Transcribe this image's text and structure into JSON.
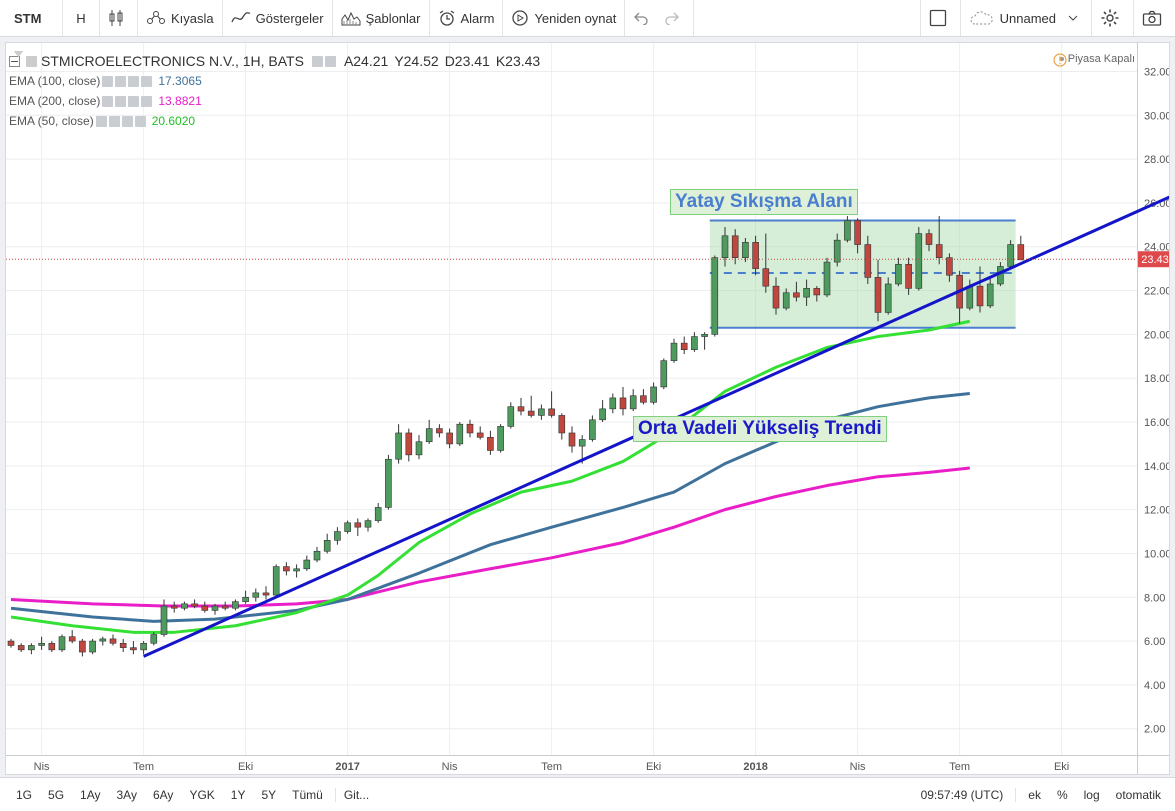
{
  "toolbar": {
    "symbol": "STM",
    "interval": "H",
    "compare": "Kıyasla",
    "indicators": "Göstergeler",
    "templates": "Şablonlar",
    "alert": "Alarm",
    "replay": "Yeniden oynat",
    "layout_name": "Unnamed"
  },
  "legend": {
    "title": "STMICROELECTRONICS N.V., 1H, BATS",
    "ohlc": [
      "A24.21",
      "Y24.52",
      "D23.41",
      "K23.43"
    ],
    "ema100": {
      "label": "EMA (100, close)",
      "value": "17.3065",
      "color": "#3f729b"
    },
    "ema200": {
      "label": "EMA (200, close)",
      "value": "13.8821",
      "color": "#e91ec8"
    },
    "ema50": {
      "label": "EMA (50, close)",
      "value": "20.6020",
      "color": "#35e035"
    }
  },
  "market_status": "Piyasa Kapalı",
  "annotations": {
    "range": "Yatay Sıkışma Alanı",
    "trend": "Orta Vadeli Yükseliş Trendi"
  },
  "chart_data": {
    "type": "candlestick",
    "ylim": [
      0.8,
      33.3
    ],
    "y_ticks": [
      "32.00",
      "30.00",
      "28.00",
      "26.00",
      "24.00",
      "22.00",
      "20.00",
      "18.00",
      "16.00",
      "14.00",
      "12.00",
      "10.00",
      "8.00",
      "6.00",
      "4.00",
      "2.00"
    ],
    "y_tick_values": [
      32,
      30,
      28,
      26,
      24,
      22,
      20,
      18,
      16,
      14,
      12,
      10,
      8,
      6,
      4,
      2
    ],
    "x_ticks": [
      {
        "label": "Nis",
        "i": 3
      },
      {
        "label": "Tem",
        "i": 13
      },
      {
        "label": "Eki",
        "i": 23
      },
      {
        "label": "2017",
        "i": 33
      },
      {
        "label": "Nis",
        "i": 43
      },
      {
        "label": "Tem",
        "i": 53
      },
      {
        "label": "Eki",
        "i": 63
      },
      {
        "label": "2018",
        "i": 73
      },
      {
        "label": "Nis",
        "i": 83
      },
      {
        "label": "Tem",
        "i": 93
      },
      {
        "label": "Eki",
        "i": 103
      }
    ],
    "x_max": 113,
    "last_price": 23.43,
    "last_price_label": "23.43",
    "up_color": "#4e9a5f",
    "down_color": "#c0473e",
    "candles": [
      [
        6.0,
        6.1,
        5.7,
        5.8
      ],
      [
        5.8,
        5.9,
        5.5,
        5.6
      ],
      [
        5.6,
        5.9,
        5.4,
        5.8
      ],
      [
        5.8,
        6.2,
        5.6,
        5.9
      ],
      [
        5.9,
        6.0,
        5.5,
        5.6
      ],
      [
        5.6,
        6.3,
        5.5,
        6.2
      ],
      [
        6.2,
        6.5,
        5.9,
        6.0
      ],
      [
        6.0,
        6.1,
        5.3,
        5.5
      ],
      [
        5.5,
        6.1,
        5.4,
        6.0
      ],
      [
        6.0,
        6.2,
        5.8,
        6.1
      ],
      [
        6.1,
        6.3,
        5.8,
        5.9
      ],
      [
        5.9,
        6.1,
        5.5,
        5.7
      ],
      [
        5.7,
        6.0,
        5.4,
        5.6
      ],
      [
        5.6,
        6.0,
        5.4,
        5.9
      ],
      [
        5.9,
        6.4,
        5.8,
        6.3
      ],
      [
        6.3,
        7.9,
        6.2,
        7.6
      ],
      [
        7.6,
        7.8,
        7.3,
        7.5
      ],
      [
        7.5,
        7.8,
        7.4,
        7.7
      ],
      [
        7.7,
        7.9,
        7.5,
        7.6
      ],
      [
        7.6,
        7.8,
        7.3,
        7.4
      ],
      [
        7.4,
        7.7,
        7.2,
        7.6
      ],
      [
        7.6,
        7.8,
        7.4,
        7.5
      ],
      [
        7.5,
        7.9,
        7.4,
        7.8
      ],
      [
        7.8,
        8.3,
        7.7,
        8.0
      ],
      [
        8.0,
        8.4,
        7.8,
        8.2
      ],
      [
        8.2,
        8.5,
        7.9,
        8.1
      ],
      [
        8.1,
        9.5,
        8.0,
        9.4
      ],
      [
        9.4,
        9.6,
        9.0,
        9.2
      ],
      [
        9.2,
        9.5,
        8.9,
        9.3
      ],
      [
        9.3,
        9.9,
        9.2,
        9.7
      ],
      [
        9.7,
        10.3,
        9.6,
        10.1
      ],
      [
        10.1,
        10.9,
        10.0,
        10.6
      ],
      [
        10.6,
        11.2,
        10.4,
        11.0
      ],
      [
        11.0,
        11.5,
        10.9,
        11.4
      ],
      [
        11.4,
        11.6,
        10.8,
        11.2
      ],
      [
        11.2,
        11.6,
        11.0,
        11.5
      ],
      [
        11.5,
        12.3,
        11.4,
        12.1
      ],
      [
        12.1,
        14.5,
        12.0,
        14.3
      ],
      [
        14.3,
        15.9,
        14.1,
        15.5
      ],
      [
        15.5,
        15.7,
        14.2,
        14.5
      ],
      [
        14.5,
        15.4,
        14.3,
        15.1
      ],
      [
        15.1,
        16.1,
        15.0,
        15.7
      ],
      [
        15.7,
        15.9,
        15.3,
        15.5
      ],
      [
        15.5,
        15.7,
        14.8,
        15.0
      ],
      [
        15.0,
        16.0,
        14.9,
        15.9
      ],
      [
        15.9,
        16.1,
        15.3,
        15.5
      ],
      [
        15.5,
        15.8,
        15.2,
        15.3
      ],
      [
        15.3,
        15.6,
        14.5,
        14.7
      ],
      [
        14.7,
        15.9,
        14.6,
        15.8
      ],
      [
        15.8,
        16.9,
        15.7,
        16.7
      ],
      [
        16.7,
        17.1,
        16.3,
        16.5
      ],
      [
        16.5,
        17.2,
        16.2,
        16.3
      ],
      [
        16.3,
        16.8,
        16.1,
        16.6
      ],
      [
        16.6,
        17.4,
        16.2,
        16.3
      ],
      [
        16.3,
        16.4,
        15.2,
        15.5
      ],
      [
        15.5,
        15.8,
        14.6,
        14.9
      ],
      [
        14.9,
        15.4,
        14.1,
        15.2
      ],
      [
        15.2,
        16.3,
        15.1,
        16.1
      ],
      [
        16.1,
        17.0,
        16.0,
        16.6
      ],
      [
        16.6,
        17.3,
        16.4,
        17.1
      ],
      [
        17.1,
        17.6,
        16.3,
        16.6
      ],
      [
        16.6,
        17.5,
        16.5,
        17.2
      ],
      [
        17.2,
        17.5,
        16.8,
        16.9
      ],
      [
        16.9,
        17.8,
        16.8,
        17.6
      ],
      [
        17.6,
        18.9,
        17.5,
        18.8
      ],
      [
        18.8,
        19.8,
        18.7,
        19.6
      ],
      [
        19.6,
        19.9,
        19.1,
        19.3
      ],
      [
        19.3,
        20.1,
        19.2,
        19.9
      ],
      [
        19.9,
        20.1,
        19.3,
        20.0
      ],
      [
        20.0,
        23.6,
        19.9,
        23.5
      ],
      [
        23.5,
        24.9,
        23.1,
        24.5
      ],
      [
        24.5,
        24.8,
        23.2,
        23.5
      ],
      [
        23.5,
        24.4,
        23.3,
        24.2
      ],
      [
        24.2,
        24.5,
        22.7,
        23.0
      ],
      [
        23.0,
        24.6,
        21.9,
        22.2
      ],
      [
        22.2,
        22.6,
        20.9,
        21.2
      ],
      [
        21.2,
        22.1,
        21.1,
        21.9
      ],
      [
        21.9,
        22.4,
        21.5,
        21.7
      ],
      [
        21.7,
        22.5,
        21.3,
        22.1
      ],
      [
        22.1,
        22.2,
        21.5,
        21.8
      ],
      [
        21.8,
        23.5,
        21.7,
        23.3
      ],
      [
        23.3,
        24.6,
        23.1,
        24.3
      ],
      [
        24.3,
        25.4,
        24.2,
        25.2
      ],
      [
        25.2,
        25.3,
        23.7,
        24.1
      ],
      [
        24.1,
        24.5,
        22.3,
        22.6
      ],
      [
        22.6,
        23.4,
        20.6,
        21.0
      ],
      [
        21.0,
        22.6,
        20.9,
        22.3
      ],
      [
        22.3,
        23.5,
        22.2,
        23.2
      ],
      [
        23.2,
        23.5,
        21.8,
        22.1
      ],
      [
        22.1,
        24.9,
        22.0,
        24.6
      ],
      [
        24.6,
        24.8,
        23.8,
        24.1
      ],
      [
        24.1,
        25.4,
        23.2,
        23.5
      ],
      [
        23.5,
        23.7,
        22.4,
        22.7
      ],
      [
        22.7,
        22.9,
        20.5,
        21.2
      ],
      [
        21.2,
        22.5,
        21.1,
        22.2
      ],
      [
        22.2,
        23.1,
        21.0,
        21.3
      ],
      [
        21.3,
        22.6,
        21.2,
        22.3
      ],
      [
        22.3,
        23.3,
        22.2,
        23.1
      ],
      [
        23.1,
        24.3,
        23.0,
        24.1
      ],
      [
        24.1,
        24.5,
        23.4,
        23.4
      ]
    ],
    "ema50": [
      [
        0,
        7.1
      ],
      [
        6,
        6.7
      ],
      [
        12,
        6.4
      ],
      [
        16,
        6.4
      ],
      [
        22,
        6.7
      ],
      [
        28,
        7.3
      ],
      [
        33,
        8.1
      ],
      [
        36,
        9.0
      ],
      [
        40,
        10.5
      ],
      [
        45,
        11.8
      ],
      [
        50,
        12.8
      ],
      [
        55,
        13.3
      ],
      [
        60,
        14.2
      ],
      [
        65,
        15.6
      ],
      [
        70,
        17.4
      ],
      [
        75,
        18.5
      ],
      [
        80,
        19.4
      ],
      [
        85,
        19.9
      ],
      [
        90,
        20.2
      ],
      [
        94,
        20.6
      ]
    ],
    "ema100": [
      [
        0,
        7.5
      ],
      [
        8,
        7.1
      ],
      [
        14,
        6.9
      ],
      [
        20,
        7.0
      ],
      [
        28,
        7.4
      ],
      [
        33,
        7.9
      ],
      [
        40,
        9.1
      ],
      [
        47,
        10.4
      ],
      [
        53,
        11.2
      ],
      [
        60,
        12.1
      ],
      [
        65,
        12.8
      ],
      [
        70,
        14.1
      ],
      [
        75,
        15.1
      ],
      [
        80,
        16.1
      ],
      [
        85,
        16.7
      ],
      [
        90,
        17.1
      ],
      [
        94,
        17.3
      ]
    ],
    "ema200": [
      [
        0,
        7.9
      ],
      [
        8,
        7.7
      ],
      [
        15,
        7.6
      ],
      [
        22,
        7.6
      ],
      [
        28,
        7.7
      ],
      [
        33,
        7.9
      ],
      [
        40,
        8.7
      ],
      [
        47,
        9.3
      ],
      [
        53,
        9.8
      ],
      [
        60,
        10.5
      ],
      [
        65,
        11.2
      ],
      [
        70,
        12.0
      ],
      [
        75,
        12.6
      ],
      [
        80,
        13.1
      ],
      [
        85,
        13.5
      ],
      [
        90,
        13.7
      ],
      [
        94,
        13.9
      ]
    ],
    "trendline": [
      [
        13,
        5.3
      ],
      [
        119,
        27.4
      ]
    ],
    "range_box": {
      "i_start": 69,
      "i_end": 98,
      "low": 20.3,
      "high": 25.2,
      "mid": 22.8
    }
  },
  "bottom": {
    "ranges": [
      "1G",
      "5G",
      "1Ay",
      "3Ay",
      "6Ay",
      "YGK",
      "1Y",
      "5Y",
      "Tümü"
    ],
    "goto": "Git...",
    "time": "09:57:49 (UTC)",
    "opts": [
      "ek",
      "%",
      "log",
      "otomatik"
    ]
  }
}
